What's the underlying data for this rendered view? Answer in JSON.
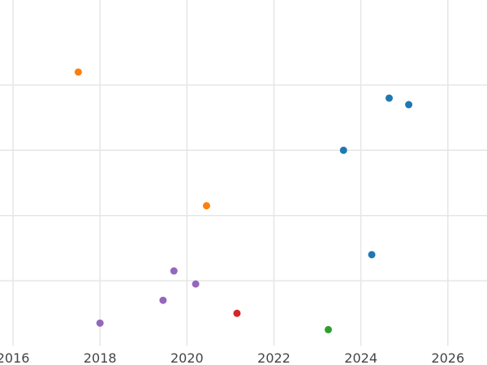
{
  "chart_data": {
    "type": "scatter",
    "title": "",
    "xlabel": "",
    "ylabel": "",
    "xlim": [
      2015.7,
      2026.9
    ],
    "ylim": [
      0,
      10
    ],
    "grid": true,
    "x_ticks": [
      2016,
      2018,
      2020,
      2022,
      2024,
      2026
    ],
    "y_gridlines": [
      2,
      4,
      6,
      8
    ],
    "y_tick_labels_shown": false,
    "points": [
      {
        "x": 2017.5,
        "y": 8.4,
        "color": "#ff7f0e"
      },
      {
        "x": 2020.45,
        "y": 4.3,
        "color": "#ff7f0e"
      },
      {
        "x": 2024.65,
        "y": 7.6,
        "color": "#1f77b4"
      },
      {
        "x": 2025.1,
        "y": 7.4,
        "color": "#1f77b4"
      },
      {
        "x": 2023.6,
        "y": 6.0,
        "color": "#1f77b4"
      },
      {
        "x": 2024.25,
        "y": 2.8,
        "color": "#1f77b4"
      },
      {
        "x": 2019.7,
        "y": 2.3,
        "color": "#9467bd"
      },
      {
        "x": 2020.2,
        "y": 1.9,
        "color": "#9467bd"
      },
      {
        "x": 2019.45,
        "y": 1.4,
        "color": "#9467bd"
      },
      {
        "x": 2018.0,
        "y": 0.7,
        "color": "#9467bd"
      },
      {
        "x": 2021.15,
        "y": 1.0,
        "color": "#d62728"
      },
      {
        "x": 2023.25,
        "y": 0.5,
        "color": "#2ca02c"
      }
    ]
  }
}
